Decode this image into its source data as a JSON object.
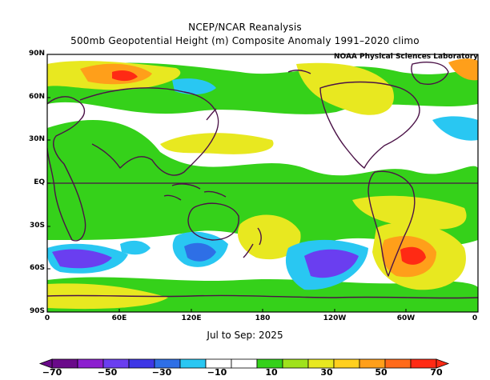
{
  "header": {
    "title": "NCEP/NCAR Reanalysis",
    "subtitle": "500mb Geopotential Height (m) Composite Anomaly 1991–2020 climo",
    "credit": "NOAA Physical Sciences Laboratory"
  },
  "axes": {
    "lat_labels": [
      "90N",
      "60N",
      "30N",
      "EQ",
      "30S",
      "60S",
      "90S"
    ],
    "lon_labels": [
      "0",
      "60E",
      "120E",
      "180",
      "120W",
      "60W",
      "0"
    ]
  },
  "period": "Jul to Sep: 2025",
  "colorbar": {
    "labels": [
      "−70",
      "−50",
      "−30",
      "−10",
      "10",
      "30",
      "50",
      "70"
    ],
    "colors": [
      "#6a0a8a",
      "#8c1ecf",
      "#6a3ef0",
      "#3e37e6",
      "#2e6fe6",
      "#29c7f2",
      "#ffffff",
      "#ffffff",
      "#35d11a",
      "#9fe21c",
      "#e8e820",
      "#ffcf1e",
      "#ff9f1a",
      "#ff6a1a",
      "#ff2a14"
    ]
  },
  "map_colors": {
    "water": "#ffffff",
    "coast": "#4b1247",
    "anom_pos_weak": "#35d11a",
    "anom_pos_mod": "#e8e820",
    "anom_pos_strong": "#ff9f1a",
    "anom_pos_peak": "#ff2a14",
    "anom_neg_weak": "#29c7f2",
    "anom_neg_mod": "#2e6fe6",
    "anom_neg_strong": "#6a3ef0"
  }
}
